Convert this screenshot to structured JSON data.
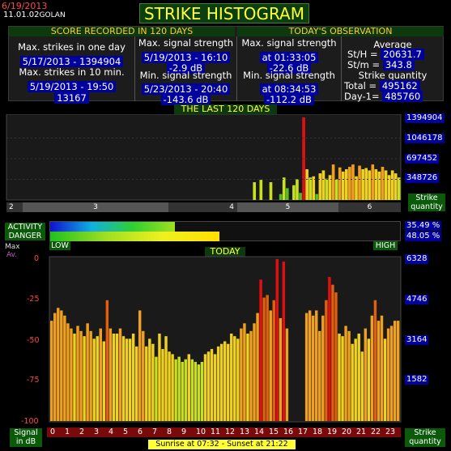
{
  "header": {
    "date": "6/19/2013",
    "version": "11.01.02",
    "station": "GOLAN",
    "title": "STRIKE HISTOGRAM"
  },
  "score": {
    "title": "SCORE RECORDED IN 120 DAYS",
    "max_strikes_day_label": "Max. strikes in one day",
    "max_strikes_day_value": "5/17/2013 - 1394904",
    "max_strikes_10min_label": "Max. strikes in 10 min.",
    "max_strikes_10min_date": "5/19/2013 - 19:50",
    "max_strikes_10min_value": "13167",
    "max_signal_label": "Max. signal strength",
    "max_signal_date": "5/19/2013 - 16:10",
    "max_signal_value": "-2.9 dB",
    "min_signal_label": "Min. signal strength",
    "min_signal_date": "5/23/2013 - 20:40",
    "min_signal_value": "-143.6 dB"
  },
  "today": {
    "title": "TODAY'S OBSERVATION",
    "max_signal_label": "Max. signal strength",
    "max_signal_time": "at 01:33:05",
    "max_signal_value": "-22.6 dB",
    "min_signal_label": "Min. signal strength",
    "min_signal_time": "at 08:34:53",
    "min_signal_value": "-112.2 dB",
    "average_label": "Average",
    "sth_label": "St/H =",
    "sth_value": "20631.7",
    "stm_label": "St/m =",
    "stm_value": "343.8",
    "quantity_label": "Strike quantity",
    "total_label": "Total =",
    "total_value": "495162",
    "day1_label": "Day-1=",
    "day1_value": "485760"
  },
  "last120": {
    "title": "THE LAST 120 DAYS",
    "y_ticks": [
      "1394904",
      "1046178",
      "697452",
      "348726"
    ],
    "y_axis_label": "Strike quantity",
    "month_labels": [
      "2",
      "3",
      "4",
      "5",
      "6"
    ],
    "chart_data": {
      "type": "bar",
      "title": "THE LAST 120 DAYS",
      "ylim": [
        0,
        1394904
      ],
      "values": [
        0,
        0,
        0,
        0,
        0,
        0,
        0,
        0,
        0,
        0,
        0,
        0,
        0,
        0,
        0,
        0,
        0,
        0,
        0,
        0,
        0,
        0,
        0,
        0,
        0,
        0,
        0,
        0,
        0,
        0,
        0,
        0,
        0,
        0,
        0,
        0,
        0,
        0,
        0,
        0,
        0,
        0,
        0,
        0,
        0,
        0,
        0,
        0,
        0,
        0,
        0,
        0,
        0,
        0,
        0,
        0,
        0,
        0,
        0,
        0,
        0,
        0,
        0,
        0,
        0,
        0,
        0,
        0,
        0,
        0,
        0,
        0,
        0,
        0,
        0,
        300000,
        0,
        340000,
        0,
        0,
        300000,
        0,
        0,
        100000,
        380000,
        200000,
        0,
        250000,
        350000,
        120000,
        1394904,
        520000,
        380000,
        400000,
        100000,
        450000,
        500000,
        360000,
        420000,
        600000,
        350000,
        550000,
        480000,
        520000,
        560000,
        600000,
        400000,
        580000,
        520000,
        540000,
        500000,
        600000,
        520000,
        480000,
        560000,
        500000,
        420000,
        500000,
        450000,
        380000
      ]
    }
  },
  "activity": {
    "label": "ACTIVITY",
    "value": 35.49,
    "text": "35.49 %"
  },
  "danger": {
    "label": "DANGER",
    "value": 48.05,
    "text": "48.05 %"
  },
  "scale": {
    "low": "LOW",
    "high": "HIGH"
  },
  "todaychart": {
    "title": "TODAY",
    "max_label": "Max",
    "avg_label": "Av.",
    "left_ticks": [
      "0",
      "-25",
      "-50",
      "-75",
      "-100"
    ],
    "right_ticks": [
      "6328",
      "4746",
      "3164",
      "1582"
    ],
    "left_axis_label": "Signal in dB",
    "right_axis_label": "Strike quantity",
    "hours": [
      "0",
      "1",
      "2",
      "3",
      "4",
      "5",
      "6",
      "7",
      "8",
      "9",
      "10",
      "11",
      "12",
      "13",
      "14",
      "15",
      "16",
      "17",
      "18",
      "19",
      "20",
      "21",
      "22",
      "23"
    ],
    "sunrise": "Sunrise at 07:32",
    "sunset": "Sunset at 21:22",
    "chart_data": {
      "type": "bar",
      "title": "TODAY",
      "x_unit": "hour",
      "ylim": [
        0,
        6328
      ],
      "values": [
        3900,
        4200,
        4400,
        4300,
        4100,
        3800,
        3600,
        3400,
        3700,
        3500,
        3300,
        3800,
        3500,
        3200,
        3300,
        3600,
        3100,
        4700,
        3600,
        3400,
        3400,
        3600,
        3300,
        3200,
        3200,
        3400,
        2900,
        4300,
        3500,
        2900,
        3200,
        3000,
        2500,
        3400,
        2800,
        3300,
        2700,
        2600,
        2400,
        2500,
        2300,
        2400,
        2600,
        2400,
        2300,
        2200,
        2300,
        2600,
        2700,
        2800,
        2600,
        2900,
        3000,
        3100,
        3000,
        3400,
        3300,
        3200,
        3600,
        3800,
        3400,
        3500,
        3800,
        4200,
        5500,
        4800,
        4900,
        4300,
        4700,
        6300,
        4000,
        6200,
        3600,
        0,
        0,
        0,
        0,
        0,
        4200,
        4300,
        4100,
        4300,
        3500,
        4100,
        4700,
        5600,
        5300,
        5000,
        3400,
        3300,
        3700,
        3500,
        3000,
        3200,
        3400,
        2700,
        3600,
        3200,
        4100,
        4700,
        3900,
        4100,
        3200,
        3600,
        3700,
        3900,
        3900
      ]
    }
  }
}
